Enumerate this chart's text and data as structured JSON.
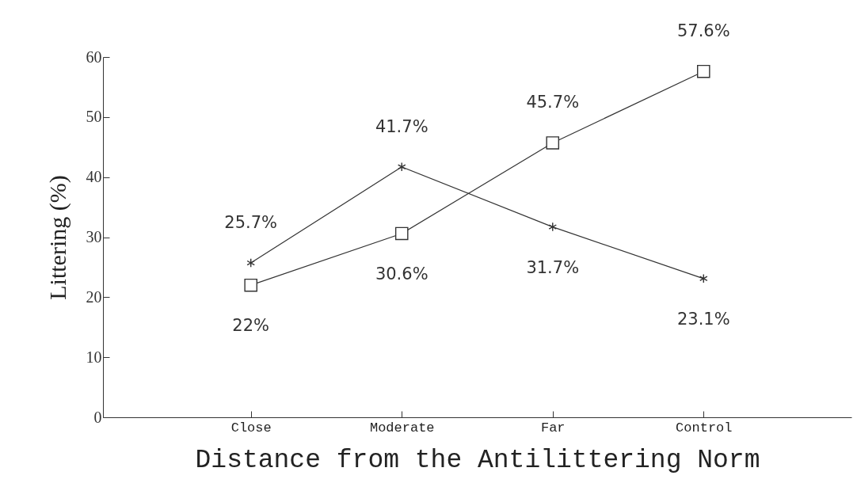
{
  "chart_data": {
    "type": "line",
    "xlabel": "Distance from the Antilittering Norm",
    "ylabel": "Littering (%)",
    "categories": [
      "Close",
      "Moderate",
      "Far",
      "Control"
    ],
    "ylim": [
      0,
      60
    ],
    "yticks": [
      0,
      10,
      20,
      30,
      40,
      50,
      60
    ],
    "line_style": "solid",
    "series": [
      {
        "color": "#333333",
        "marker": "cross",
        "values": [
          25.7,
          41.7,
          31.7,
          23.1
        ],
        "value_labels": [
          "25.7%",
          "41.7%",
          "31.7%",
          "23.1%"
        ]
      },
      {
        "color": "#333333",
        "marker": "square",
        "values": [
          22,
          30.6,
          45.7,
          57.6
        ],
        "value_labels": [
          "22%",
          "30.6%",
          "45.7%",
          "57.6%"
        ]
      }
    ]
  }
}
